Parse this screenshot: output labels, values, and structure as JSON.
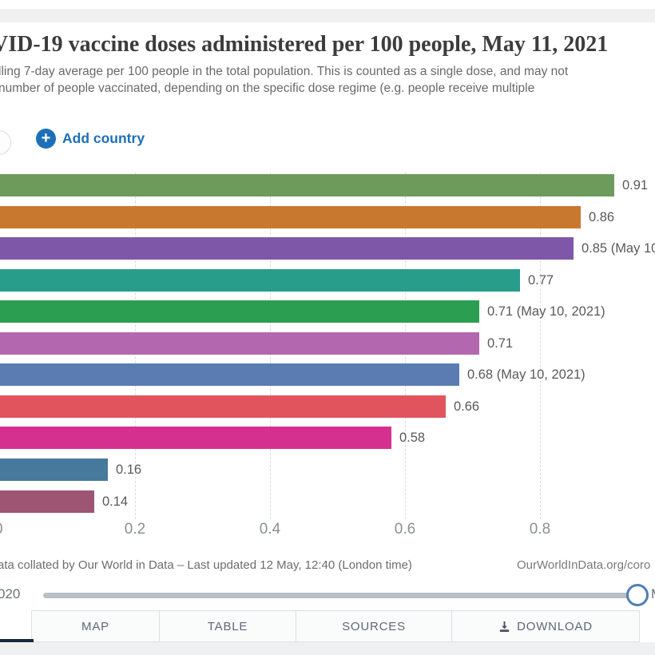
{
  "header": {
    "title": "VID-19 vaccine doses administered per 100 people, May 11, 2021",
    "subtitle_line1": "lling 7-day average per 100 people in the total population. This is counted as a single dose, and may not",
    "subtitle_line2": "number of people vaccinated, depending on the specific dose regime (e.g. people receive multiple"
  },
  "controls": {
    "add_country_label": "Add country",
    "accent_color": "#1d70b8"
  },
  "icons": {
    "plus": "+"
  },
  "chart_data": {
    "type": "bar",
    "orientation": "horizontal",
    "title": "VID-19 vaccine doses administered per 100 people, May 11, 2021",
    "xlabel": "",
    "ylabel": "",
    "xlim": [
      0,
      0.97
    ],
    "x_ticks": [
      "0",
      "0.2",
      "0.4",
      "0.6",
      "0.8"
    ],
    "x_tick_values": [
      0,
      0.2,
      0.4,
      0.6,
      0.8
    ],
    "grid": "dashed-vertical",
    "legend": "none (country labels cropped at left edge)",
    "bars": [
      {
        "value": 0.91,
        "label": "0.91",
        "color": "#6d9b5c"
      },
      {
        "value": 0.86,
        "label": "0.86",
        "color": "#c9792f"
      },
      {
        "value": 0.85,
        "label": "0.85 (May 10,",
        "color": "#7e57a9"
      },
      {
        "value": 0.77,
        "label": "0.77",
        "color": "#279d8a"
      },
      {
        "value": 0.71,
        "label": "0.71 (May 10, 2021)",
        "color": "#2c9e51"
      },
      {
        "value": 0.71,
        "label": "0.71",
        "color": "#b267ae"
      },
      {
        "value": 0.68,
        "label": "0.68 (May 10, 2021)",
        "color": "#5a7cb3"
      },
      {
        "value": 0.66,
        "label": "0.66",
        "color": "#e1545e"
      },
      {
        "value": 0.58,
        "label": "0.58",
        "color": "#d6308f"
      },
      {
        "value": 0.16,
        "label": "0.16",
        "color": "#47799d"
      },
      {
        "value": 0.14,
        "label": "0.14",
        "color": "#9d5573"
      }
    ]
  },
  "footer": {
    "source_text": "ata collated by Our World in Data – Last updated 12 May, 12:40 (London time)",
    "site_text": "OurWorldInData.org/coro"
  },
  "timeline": {
    "start_label": "020",
    "end_label": "M"
  },
  "tabs": {
    "map": "MAP",
    "table": "TABLE",
    "sources": "SOURCES",
    "download": "DOWNLOAD"
  }
}
